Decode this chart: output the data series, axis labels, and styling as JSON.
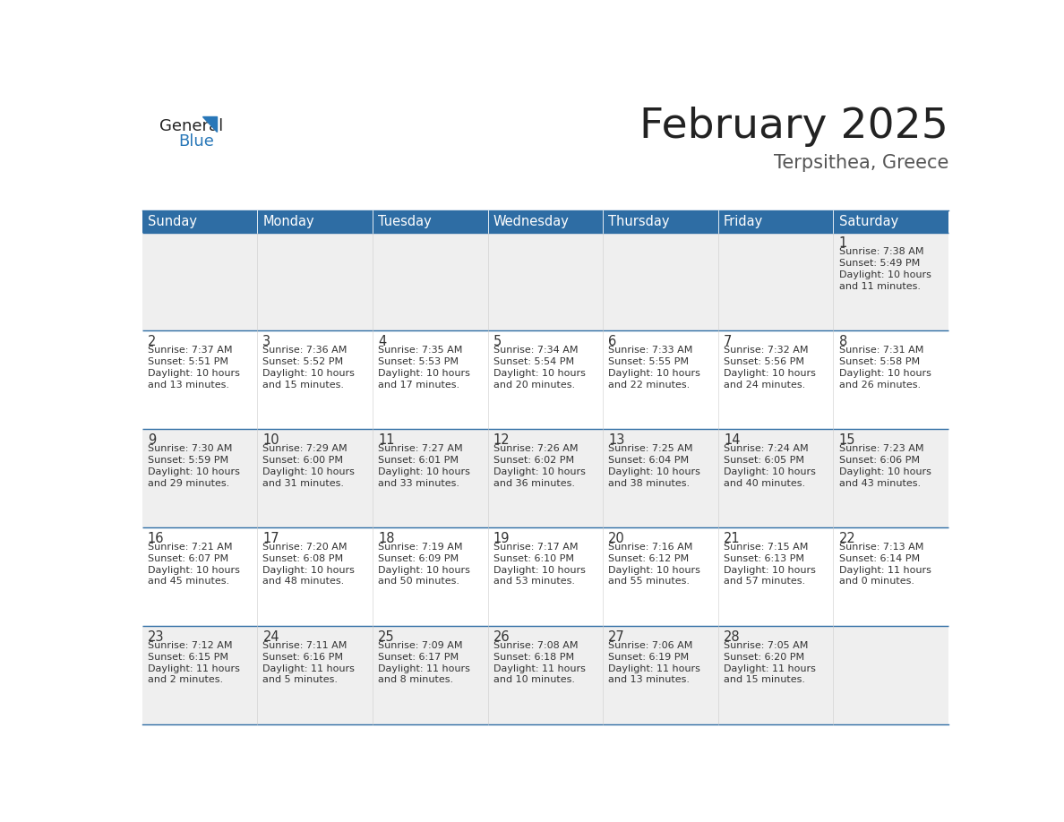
{
  "title": "February 2025",
  "subtitle": "Terpsithea, Greece",
  "days_of_week": [
    "Sunday",
    "Monday",
    "Tuesday",
    "Wednesday",
    "Thursday",
    "Friday",
    "Saturday"
  ],
  "header_bg": "#2E6DA4",
  "header_text": "#FFFFFF",
  "row_bg_odd": "#EFEFEF",
  "row_bg_even": "#FFFFFF",
  "cell_text_color": "#333333",
  "day_num_color": "#333333",
  "title_color": "#222222",
  "subtitle_color": "#555555",
  "border_color": "#2E6DA4",
  "logo_general_color": "#222222",
  "logo_blue_color": "#2877B8",
  "weeks": [
    [
      {
        "day": null,
        "sunrise": null,
        "sunset": null,
        "daylight": null
      },
      {
        "day": null,
        "sunrise": null,
        "sunset": null,
        "daylight": null
      },
      {
        "day": null,
        "sunrise": null,
        "sunset": null,
        "daylight": null
      },
      {
        "day": null,
        "sunrise": null,
        "sunset": null,
        "daylight": null
      },
      {
        "day": null,
        "sunrise": null,
        "sunset": null,
        "daylight": null
      },
      {
        "day": null,
        "sunrise": null,
        "sunset": null,
        "daylight": null
      },
      {
        "day": 1,
        "sunrise": "7:38 AM",
        "sunset": "5:49 PM",
        "daylight": "10 hours\nand 11 minutes."
      }
    ],
    [
      {
        "day": 2,
        "sunrise": "7:37 AM",
        "sunset": "5:51 PM",
        "daylight": "10 hours\nand 13 minutes."
      },
      {
        "day": 3,
        "sunrise": "7:36 AM",
        "sunset": "5:52 PM",
        "daylight": "10 hours\nand 15 minutes."
      },
      {
        "day": 4,
        "sunrise": "7:35 AM",
        "sunset": "5:53 PM",
        "daylight": "10 hours\nand 17 minutes."
      },
      {
        "day": 5,
        "sunrise": "7:34 AM",
        "sunset": "5:54 PM",
        "daylight": "10 hours\nand 20 minutes."
      },
      {
        "day": 6,
        "sunrise": "7:33 AM",
        "sunset": "5:55 PM",
        "daylight": "10 hours\nand 22 minutes."
      },
      {
        "day": 7,
        "sunrise": "7:32 AM",
        "sunset": "5:56 PM",
        "daylight": "10 hours\nand 24 minutes."
      },
      {
        "day": 8,
        "sunrise": "7:31 AM",
        "sunset": "5:58 PM",
        "daylight": "10 hours\nand 26 minutes."
      }
    ],
    [
      {
        "day": 9,
        "sunrise": "7:30 AM",
        "sunset": "5:59 PM",
        "daylight": "10 hours\nand 29 minutes."
      },
      {
        "day": 10,
        "sunrise": "7:29 AM",
        "sunset": "6:00 PM",
        "daylight": "10 hours\nand 31 minutes."
      },
      {
        "day": 11,
        "sunrise": "7:27 AM",
        "sunset": "6:01 PM",
        "daylight": "10 hours\nand 33 minutes."
      },
      {
        "day": 12,
        "sunrise": "7:26 AM",
        "sunset": "6:02 PM",
        "daylight": "10 hours\nand 36 minutes."
      },
      {
        "day": 13,
        "sunrise": "7:25 AM",
        "sunset": "6:04 PM",
        "daylight": "10 hours\nand 38 minutes."
      },
      {
        "day": 14,
        "sunrise": "7:24 AM",
        "sunset": "6:05 PM",
        "daylight": "10 hours\nand 40 minutes."
      },
      {
        "day": 15,
        "sunrise": "7:23 AM",
        "sunset": "6:06 PM",
        "daylight": "10 hours\nand 43 minutes."
      }
    ],
    [
      {
        "day": 16,
        "sunrise": "7:21 AM",
        "sunset": "6:07 PM",
        "daylight": "10 hours\nand 45 minutes."
      },
      {
        "day": 17,
        "sunrise": "7:20 AM",
        "sunset": "6:08 PM",
        "daylight": "10 hours\nand 48 minutes."
      },
      {
        "day": 18,
        "sunrise": "7:19 AM",
        "sunset": "6:09 PM",
        "daylight": "10 hours\nand 50 minutes."
      },
      {
        "day": 19,
        "sunrise": "7:17 AM",
        "sunset": "6:10 PM",
        "daylight": "10 hours\nand 53 minutes."
      },
      {
        "day": 20,
        "sunrise": "7:16 AM",
        "sunset": "6:12 PM",
        "daylight": "10 hours\nand 55 minutes."
      },
      {
        "day": 21,
        "sunrise": "7:15 AM",
        "sunset": "6:13 PM",
        "daylight": "10 hours\nand 57 minutes."
      },
      {
        "day": 22,
        "sunrise": "7:13 AM",
        "sunset": "6:14 PM",
        "daylight": "11 hours\nand 0 minutes."
      }
    ],
    [
      {
        "day": 23,
        "sunrise": "7:12 AM",
        "sunset": "6:15 PM",
        "daylight": "11 hours\nand 2 minutes."
      },
      {
        "day": 24,
        "sunrise": "7:11 AM",
        "sunset": "6:16 PM",
        "daylight": "11 hours\nand 5 minutes."
      },
      {
        "day": 25,
        "sunrise": "7:09 AM",
        "sunset": "6:17 PM",
        "daylight": "11 hours\nand 8 minutes."
      },
      {
        "day": 26,
        "sunrise": "7:08 AM",
        "sunset": "6:18 PM",
        "daylight": "11 hours\nand 10 minutes."
      },
      {
        "day": 27,
        "sunrise": "7:06 AM",
        "sunset": "6:19 PM",
        "daylight": "11 hours\nand 13 minutes."
      },
      {
        "day": 28,
        "sunrise": "7:05 AM",
        "sunset": "6:20 PM",
        "daylight": "11 hours\nand 15 minutes."
      },
      {
        "day": null,
        "sunrise": null,
        "sunset": null,
        "daylight": null
      }
    ]
  ],
  "fig_width": 11.88,
  "fig_height": 9.18,
  "dpi": 100
}
